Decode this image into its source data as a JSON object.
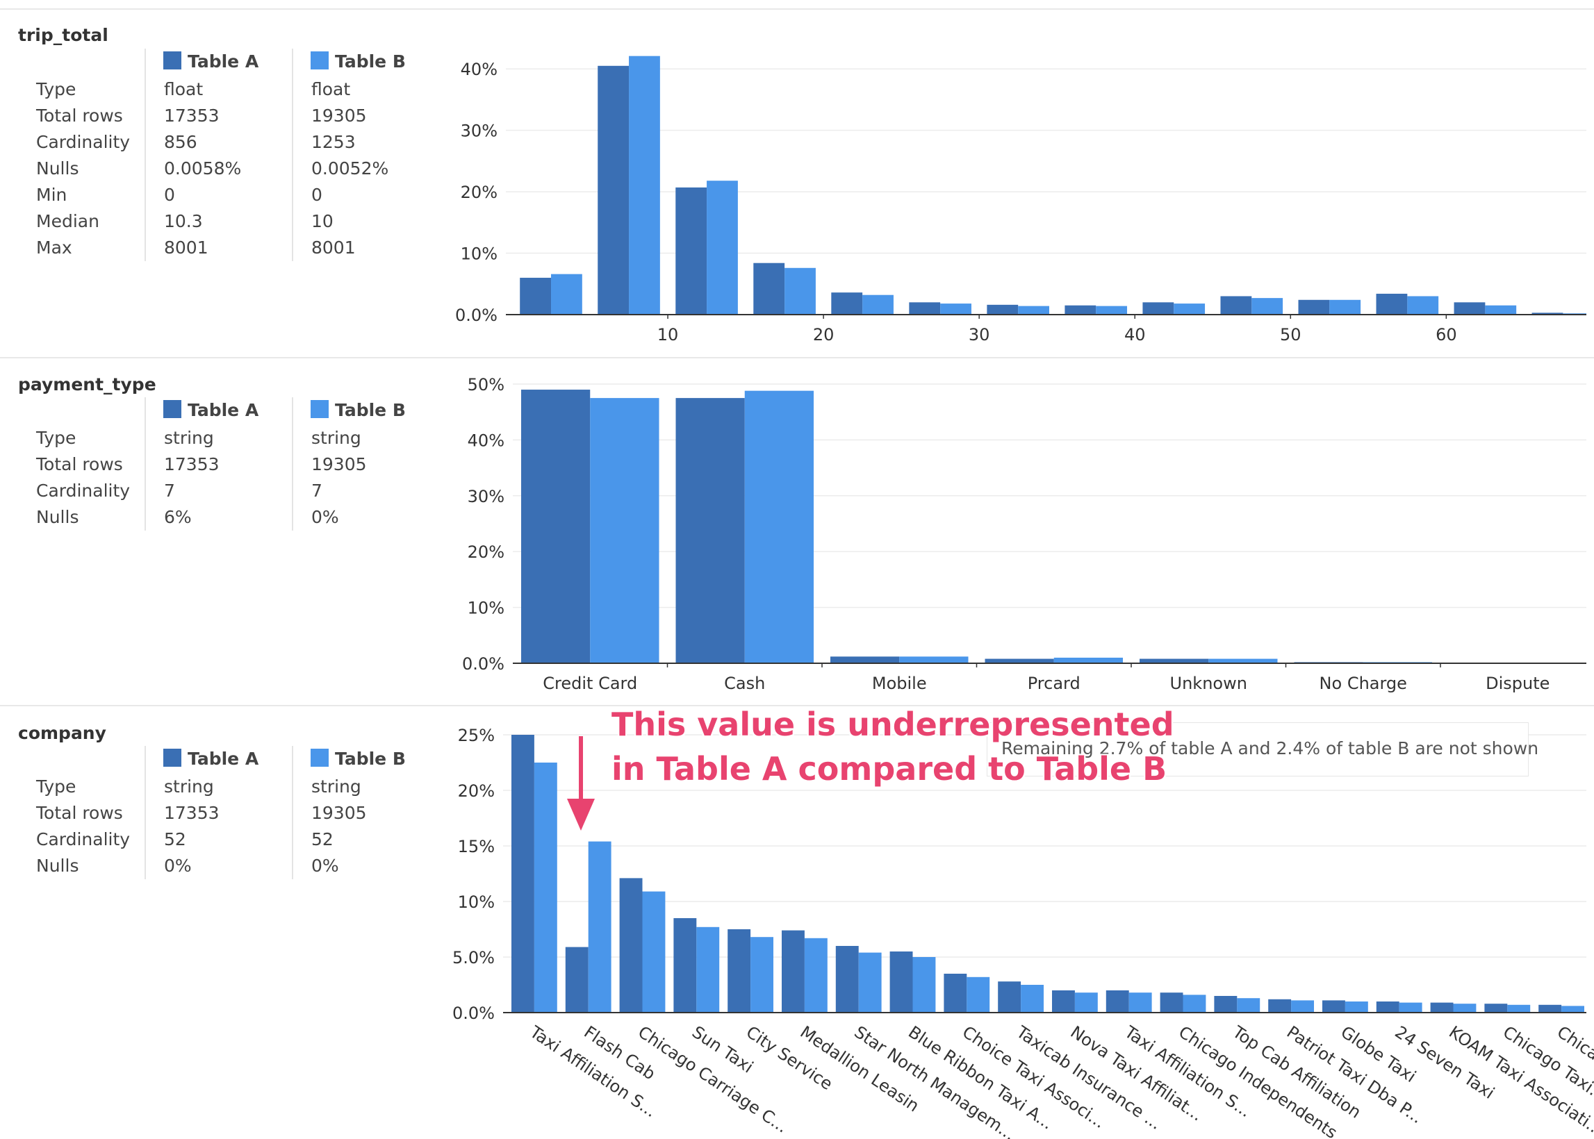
{
  "legend": {
    "a": "Table A",
    "b": "Table B"
  },
  "colors": {
    "table_a": "#3a6fb4",
    "table_b": "#4a96ea",
    "annotation": "#e8436f"
  },
  "sections": [
    {
      "title": "trip_total",
      "stats": [
        {
          "label": "Type",
          "a": "float",
          "b": "float"
        },
        {
          "label": "Total rows",
          "a": "17353",
          "b": "19305"
        },
        {
          "label": "Cardinality",
          "a": "856",
          "b": "1253"
        },
        {
          "label": "Nulls",
          "a": "0.0058%",
          "b": "0.0052%"
        },
        {
          "label": "Min",
          "a": "0",
          "b": "0"
        },
        {
          "label": "Median",
          "a": "10.3",
          "b": "10"
        },
        {
          "label": "Max",
          "a": "8001",
          "b": "8001"
        }
      ]
    },
    {
      "title": "payment_type",
      "stats": [
        {
          "label": "Type",
          "a": "string",
          "b": "string"
        },
        {
          "label": "Total rows",
          "a": "17353",
          "b": "19305"
        },
        {
          "label": "Cardinality",
          "a": "7",
          "b": "7"
        },
        {
          "label": "Nulls",
          "a": "6%",
          "b": "0%"
        }
      ]
    },
    {
      "title": "company",
      "stats": [
        {
          "label": "Type",
          "a": "string",
          "b": "string"
        },
        {
          "label": "Total rows",
          "a": "17353",
          "b": "19305"
        },
        {
          "label": "Cardinality",
          "a": "52",
          "b": "52"
        },
        {
          "label": "Nulls",
          "a": "0%",
          "b": "0%"
        }
      ]
    }
  ],
  "annotation": {
    "line1": "This value is underrepresented",
    "line2": "in Table A compared to Table B"
  },
  "note": "Remaining 2.7% of table A and 2.4% of table B are not shown",
  "chart_data": [
    {
      "type": "bar",
      "name": "trip_total",
      "x_type": "numeric-bins",
      "bin_centers": [
        2.5,
        7.5,
        12.5,
        17.5,
        22.5,
        27.5,
        32.5,
        37.5,
        42.5,
        47.5,
        52.5,
        57.5,
        62.5,
        67.5
      ],
      "xlim": [
        0,
        69
      ],
      "xticks": [
        10,
        20,
        30,
        40,
        50,
        60
      ],
      "ylim": [
        0,
        45
      ],
      "yticks": [
        "0.0%",
        "10%",
        "20%",
        "30%",
        "40%"
      ],
      "ytick_values": [
        0,
        10,
        20,
        30,
        40
      ],
      "series": [
        {
          "name": "Table A",
          "values": [
            6.0,
            40.5,
            20.7,
            8.4,
            3.6,
            2.0,
            1.6,
            1.5,
            2.0,
            3.0,
            2.4,
            3.4,
            2.0,
            0.3
          ]
        },
        {
          "name": "Table B",
          "values": [
            6.6,
            42.1,
            21.8,
            7.6,
            3.2,
            1.8,
            1.4,
            1.4,
            1.8,
            2.7,
            2.4,
            3.0,
            1.5,
            0.2
          ]
        }
      ],
      "grid": true
    },
    {
      "type": "bar",
      "name": "payment_type",
      "categories": [
        "Credit Card",
        "Cash",
        "Mobile",
        "Prcard",
        "Unknown",
        "No Charge",
        "Dispute"
      ],
      "ylim": [
        0,
        50
      ],
      "yticks": [
        "0.0%",
        "10%",
        "20%",
        "30%",
        "40%",
        "50%"
      ],
      "ytick_values": [
        0,
        10,
        20,
        30,
        40,
        50
      ],
      "series": [
        {
          "name": "Table A",
          "values": [
            49.0,
            47.5,
            1.2,
            0.8,
            0.8,
            0.2,
            0.1
          ]
        },
        {
          "name": "Table B",
          "values": [
            47.5,
            48.8,
            1.2,
            1.0,
            0.8,
            0.2,
            0.1
          ]
        }
      ],
      "grid": true
    },
    {
      "type": "bar",
      "name": "company",
      "categories": [
        "Taxi Affiliation S...",
        "Flash Cab",
        "Chicago Carriage C...",
        "Sun Taxi",
        "City Service",
        "Medallion Leasin",
        "Star North Managem...",
        "Blue Ribbon Taxi A...",
        "Choice Taxi Associ...",
        "Taxicab Insurance ...",
        "Nova Taxi Affiliat...",
        "Taxi Affiliation S...",
        "Chicago Independents",
        "Top Cab Affiliation",
        "Patriot Taxi Dba P...",
        "Globe Taxi",
        "24 Seven Taxi",
        "KOAM Taxi Associati...",
        "Chicago Taxi...",
        "Chicago..."
      ],
      "ylim": [
        0,
        25
      ],
      "yticks": [
        "0.0%",
        "5.0%",
        "10%",
        "15%",
        "20%",
        "25%"
      ],
      "ytick_values": [
        0,
        5,
        10,
        15,
        20,
        25
      ],
      "series": [
        {
          "name": "Table A",
          "values": [
            25.0,
            5.9,
            12.1,
            8.5,
            7.5,
            7.4,
            6.0,
            5.5,
            3.5,
            2.8,
            2.0,
            2.0,
            1.8,
            1.5,
            1.2,
            1.1,
            1.0,
            0.9,
            0.8,
            0.7
          ]
        },
        {
          "name": "Table B",
          "values": [
            22.5,
            15.4,
            10.9,
            7.7,
            6.8,
            6.7,
            5.4,
            5.0,
            3.2,
            2.5,
            1.8,
            1.8,
            1.6,
            1.3,
            1.1,
            1.0,
            0.9,
            0.8,
            0.7,
            0.6
          ]
        }
      ],
      "grid": true
    }
  ]
}
